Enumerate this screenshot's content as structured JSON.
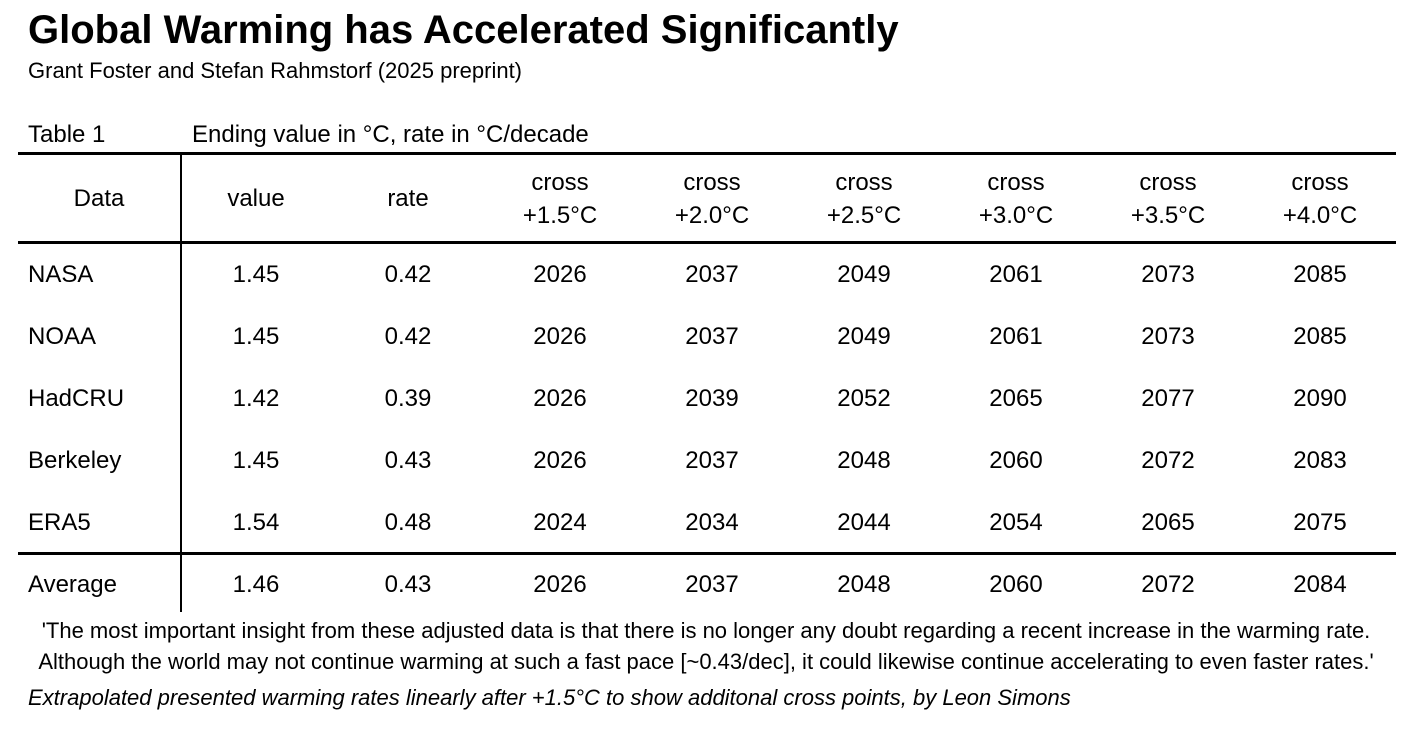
{
  "page": {
    "title": "Global Warming has Accelerated Significantly",
    "subtitle": "Grant Foster and Stefan Rahmstorf (2025 preprint)"
  },
  "table": {
    "label": "Table 1",
    "caption": "Ending value in °C, rate in °C/decade",
    "columns": [
      {
        "line1": "Data",
        "line2": ""
      },
      {
        "line1": "value",
        "line2": ""
      },
      {
        "line1": "rate",
        "line2": ""
      },
      {
        "line1": "cross",
        "line2": "+1.5°C"
      },
      {
        "line1": "cross",
        "line2": "+2.0°C"
      },
      {
        "line1": "cross",
        "line2": "+2.5°C"
      },
      {
        "line1": "cross",
        "line2": "+3.0°C"
      },
      {
        "line1": "cross",
        "line2": "+3.5°C"
      },
      {
        "line1": "cross",
        "line2": "+4.0°C"
      }
    ],
    "rows": [
      {
        "data": "NASA",
        "value": "1.45",
        "rate": "0.42",
        "cross": [
          "2026",
          "2037",
          "2049",
          "2061",
          "2073",
          "2085"
        ]
      },
      {
        "data": "NOAA",
        "value": "1.45",
        "rate": "0.42",
        "cross": [
          "2026",
          "2037",
          "2049",
          "2061",
          "2073",
          "2085"
        ]
      },
      {
        "data": "HadCRU",
        "value": "1.42",
        "rate": "0.39",
        "cross": [
          "2026",
          "2039",
          "2052",
          "2065",
          "2077",
          "2090"
        ]
      },
      {
        "data": "Berkeley",
        "value": "1.45",
        "rate": "0.43",
        "cross": [
          "2026",
          "2037",
          "2048",
          "2060",
          "2072",
          "2083"
        ]
      },
      {
        "data": "ERA5",
        "value": "1.54",
        "rate": "0.48",
        "cross": [
          "2024",
          "2034",
          "2044",
          "2054",
          "2065",
          "2075"
        ]
      }
    ],
    "summary_row": {
      "data": "Average",
      "value": "1.46",
      "rate": "0.43",
      "cross": [
        "2026",
        "2037",
        "2048",
        "2060",
        "2072",
        "2084"
      ]
    }
  },
  "quote": {
    "line1": "'The most important insight from these adjusted data is that there is no longer any doubt regarding a recent increase in the warming rate.",
    "line2": "Although the world may not continue warming at such a fast pace [~0.43/dec], it could likewise continue accelerating to even faster rates.'"
  },
  "footnote": "Extrapolated presented warming rates linearly after +1.5°C to show additonal cross points, by Leon Simons"
}
